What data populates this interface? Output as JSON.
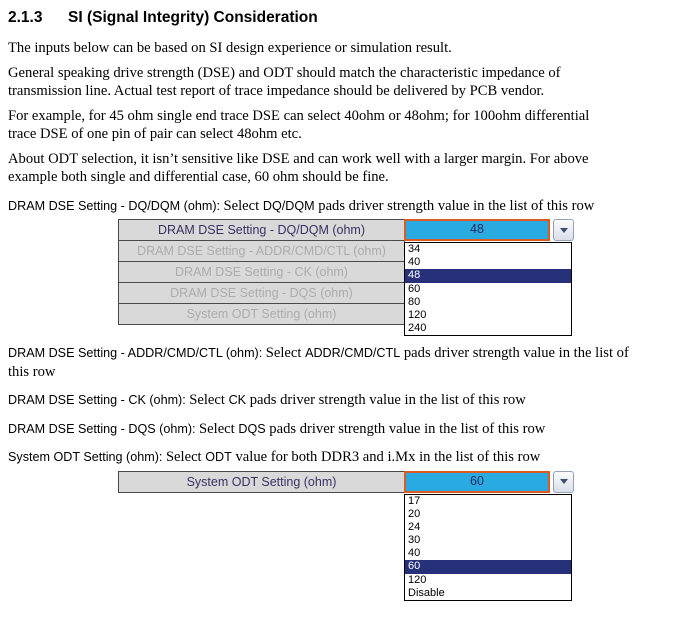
{
  "heading": {
    "number": "2.1.3",
    "title": "SI (Signal Integrity) Consideration"
  },
  "paragraphs": [
    "The inputs below can be based on SI design experience or simulation result.",
    "General speaking drive strength (DSE) and ODT should match the characteristic impedance of\ntransmission line. Actual test report of trace impedance should be delivered by PCB vendor.",
    "For example, for 45 ohm single end trace DSE can select 40ohm or 48ohm; for 100ohm differential\ntrace DSE of one pin of pair can select 48ohm etc.",
    "About ODT selection, it isn’t sensitive like DSE and can work well with a larger margin. For above\nexample both single and differential case, 60 ohm should be fine."
  ],
  "definitions": {
    "dq": [
      {
        "text": "DRAM DSE Setting - DQ/DQM (ohm): ",
        "font": "sans"
      },
      {
        "text": "Select ",
        "font": "serif"
      },
      {
        "text": "DQ/DQM",
        "font": "sans"
      },
      {
        "text": " pads driver strength value in the list of this row",
        "font": "serif"
      }
    ],
    "addr": [
      {
        "text": "DRAM DSE Setting - ADDR/CMD/CTL (ohm): ",
        "font": "sans"
      },
      {
        "text": "Select ",
        "font": "serif"
      },
      {
        "text": "ADDR/CMD/CTL",
        "font": "sans"
      },
      {
        "text": " pads driver strength value in the list of\nthis row",
        "font": "serif"
      }
    ],
    "ck": [
      {
        "text": "DRAM DSE Setting - CK (ohm): ",
        "font": "sans"
      },
      {
        "text": "Select ",
        "font": "serif"
      },
      {
        "text": "CK",
        "font": "sans"
      },
      {
        "text": " pads driver strength value in the list of this row",
        "font": "serif"
      }
    ],
    "dqs": [
      {
        "text": "DRAM DSE Setting - DQS (ohm): ",
        "font": "sans"
      },
      {
        "text": "Select ",
        "font": "serif"
      },
      {
        "text": "DQS",
        "font": "sans"
      },
      {
        "text": " pads driver strength value in the list of this row",
        "font": "serif"
      }
    ],
    "odt": [
      {
        "text": "System ODT Setting (ohm): ",
        "font": "sans"
      },
      {
        "text": "Select ",
        "font": "serif"
      },
      {
        "text": "ODT",
        "font": "sans"
      },
      {
        "text": " value for both DDR3 and i.Mx in the list of this row",
        "font": "serif"
      }
    ]
  },
  "dse_table": {
    "rows": [
      {
        "label": "DRAM DSE Setting - DQ/DQM (ohm)",
        "state": "active"
      },
      {
        "label": "DRAM DSE Setting - ADDR/CMD/CTL (ohm)",
        "state": "disabled"
      },
      {
        "label": "DRAM DSE Setting - CK (ohm)",
        "state": "disabled"
      },
      {
        "label": "DRAM DSE Setting - DQS (ohm)",
        "state": "disabled"
      },
      {
        "label": "System ODT Setting (ohm)",
        "state": "disabled"
      }
    ],
    "value": "48",
    "options": [
      "34",
      "40",
      "48",
      "60",
      "80",
      "120",
      "240"
    ],
    "selected_index": 2
  },
  "odt_table": {
    "rows": [
      {
        "label": "System ODT Setting (ohm)",
        "state": "active"
      }
    ],
    "value": "60",
    "options": [
      "17",
      "20",
      "24",
      "30",
      "40",
      "60",
      "120",
      "Disable"
    ],
    "selected_index": 5
  },
  "colors": {
    "combo_fill": "#29ABE2",
    "combo_border": "#DD5B21",
    "selection": "#27317A",
    "row_fill": "#D9D9D9"
  }
}
